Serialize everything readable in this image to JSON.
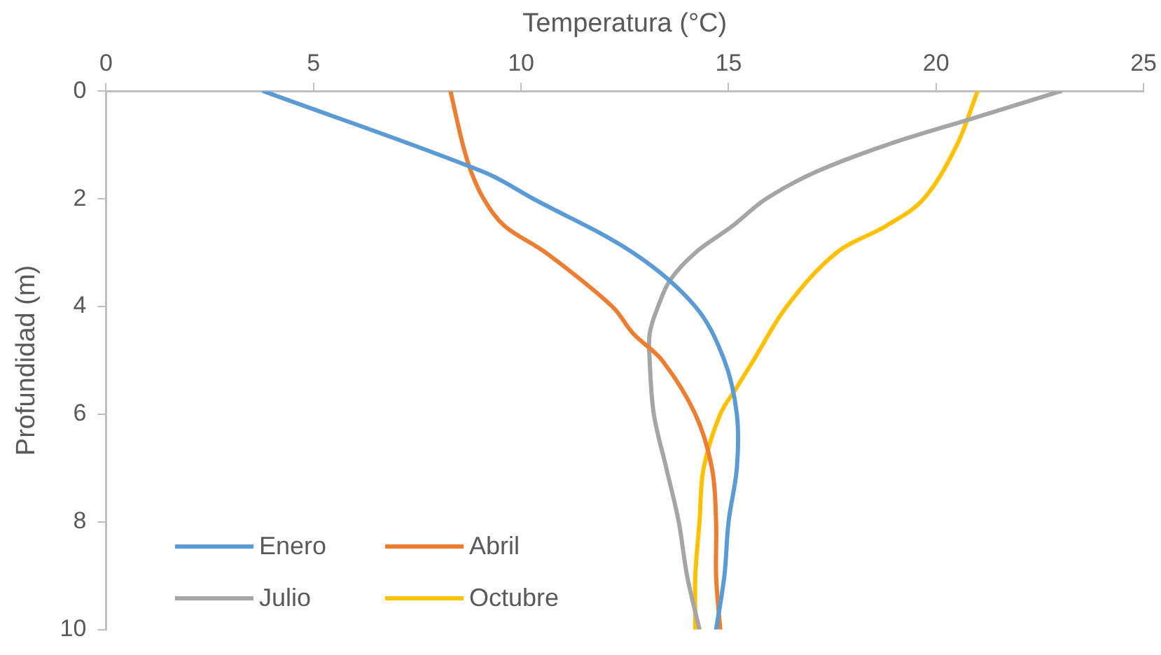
{
  "chart_data": {
    "type": "line",
    "xlabel": "Temperatura (°C)",
    "ylabel": "Profundidad (m)",
    "xlim": [
      0,
      25
    ],
    "xticks": [
      0,
      5,
      10,
      15,
      20,
      25
    ],
    "ylim": [
      10,
      0
    ],
    "yticks": [
      0,
      2,
      4,
      6,
      8,
      10
    ],
    "grid": false,
    "legend": "bottom left",
    "marker": "none",
    "line_style": "solid",
    "series": [
      {
        "name": "Enero",
        "color": "#5b9bd5",
        "x": [
          3.8,
          9.1,
          10.3,
          12.7,
          14.2,
          14.9,
          15.2,
          15.2,
          15.0,
          14.9,
          14.7
        ],
        "values": [
          0,
          1.5,
          2,
          3,
          4,
          5,
          6,
          7,
          8,
          9,
          10
        ]
      },
      {
        "name": "Abril",
        "color": "#ed7d31",
        "x": [
          8.3,
          8.6,
          8.8,
          9.1,
          9.6,
          10.6,
          12.2,
          12.7,
          13.4,
          14.2,
          14.6,
          14.7,
          14.7,
          14.8
        ],
        "values": [
          0,
          1,
          1.5,
          2,
          2.5,
          3,
          4,
          4.5,
          5,
          6,
          7,
          8,
          9,
          10
        ]
      },
      {
        "name": "Julio",
        "color": "#a5a5a5",
        "x": [
          23,
          20.9,
          18.8,
          17.1,
          15.9,
          15.1,
          14.2,
          13.6,
          13.3,
          13.1,
          13.1,
          13.2,
          13.5,
          13.8,
          14.0,
          14.3
        ],
        "values": [
          0,
          0.5,
          1,
          1.5,
          2,
          2.5,
          3,
          3.5,
          4,
          4.5,
          5,
          6,
          7,
          8,
          9,
          10
        ]
      },
      {
        "name": "Octubre",
        "color": "#ffc000",
        "x": [
          21,
          20.5,
          19.7,
          18.8,
          17.6,
          16.4,
          15.6,
          15.2,
          14.8,
          14.4,
          14.3,
          14.2,
          14.2
        ],
        "values": [
          0,
          1,
          2,
          2.5,
          3,
          4,
          5,
          5.5,
          6,
          7,
          8,
          9,
          10
        ]
      }
    ]
  }
}
